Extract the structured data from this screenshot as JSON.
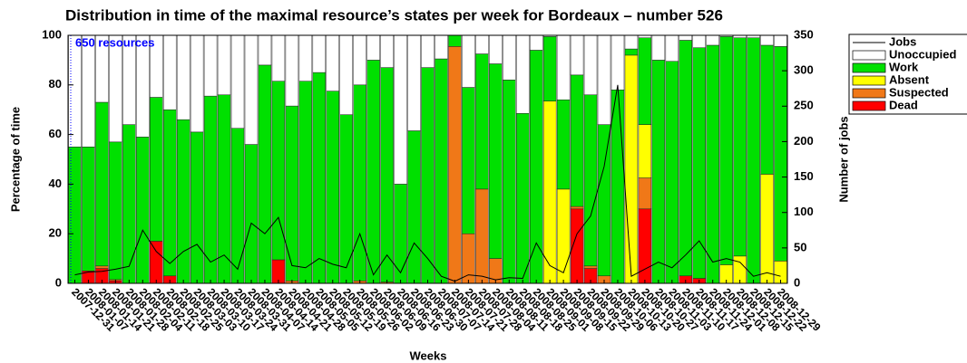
{
  "chart_data": {
    "type": "bar",
    "stacked": true,
    "title": "Distribution in time of the maximal resource’s states per week for Bordeaux – number 526",
    "xlabel": "Weeks",
    "ylabel": "Percentage of time",
    "y2label": "Number of jobs",
    "annotation": "650 resources",
    "legend": "outside-top-right",
    "categories": [
      "2007-12-31",
      "2008-01-07",
      "2008-01-14",
      "2008-01-21",
      "2008-01-28",
      "2008-02-04",
      "2008-02-11",
      "2008-02-18",
      "2008-02-25",
      "2008-03-03",
      "2008-03-10",
      "2008-03-17",
      "2008-03-24",
      "2008-03-31",
      "2008-04-07",
      "2008-04-14",
      "2008-04-21",
      "2008-04-28",
      "2008-05-05",
      "2008-05-12",
      "2008-05-19",
      "2008-05-26",
      "2008-06-02",
      "2008-06-09",
      "2008-06-16",
      "2008-06-23",
      "2008-06-30",
      "2008-07-07",
      "2008-07-14",
      "2008-07-21",
      "2008-07-28",
      "2008-08-04",
      "2008-08-11",
      "2008-08-18",
      "2008-08-25",
      "2008-09-01",
      "2008-09-08",
      "2008-09-15",
      "2008-09-22",
      "2008-09-29",
      "2008-10-06",
      "2008-10-13",
      "2008-10-20",
      "2008-10-27",
      "2008-11-03",
      "2008-11-10",
      "2008-11-17",
      "2008-11-24",
      "2008-12-01",
      "2008-12-08",
      "2008-12-15",
      "2008-12-22",
      "2008-12-29"
    ],
    "series": [
      {
        "name": "Jobs",
        "type": "line",
        "axis": "y2",
        "color": "#000000",
        "values": [
          12,
          16,
          17,
          20,
          24,
          75,
          45,
          28,
          45,
          55,
          30,
          40,
          20,
          85,
          70,
          93,
          25,
          22,
          35,
          27,
          22,
          70,
          12,
          40,
          15,
          57,
          35,
          10,
          3,
          12,
          10,
          5,
          8,
          7,
          57,
          25,
          15,
          70,
          95,
          165,
          280,
          10,
          20,
          30,
          22,
          40,
          60,
          30,
          35,
          30,
          10,
          15,
          10
        ]
      },
      {
        "name": "Unoccupied",
        "color": "#ffffff",
        "values": [
          45,
          45,
          27,
          43,
          36,
          41,
          25,
          30,
          34,
          39,
          24.5,
          24,
          37.5,
          44,
          12,
          18.5,
          28.5,
          18.5,
          15,
          22.5,
          32,
          20,
          10,
          13,
          60,
          38.5,
          13,
          9.5,
          0,
          21,
          7.5,
          11.5,
          18,
          31.5,
          6,
          0.5,
          26,
          16,
          24,
          36,
          22,
          5.5,
          1,
          10,
          10.5,
          2,
          5,
          4,
          0.5,
          1,
          1,
          4,
          4.5
        ]
      },
      {
        "name": "Work",
        "color": "#00e000",
        "values": [
          55,
          50,
          66,
          55.5,
          64,
          59,
          58,
          67,
          66,
          61,
          75.5,
          76,
          62.5,
          56,
          88,
          72,
          70.5,
          81.5,
          85,
          77.5,
          68,
          79,
          90,
          86.5,
          40,
          61.5,
          87,
          90.5,
          4.5,
          59,
          54.5,
          78.5,
          82,
          68.5,
          94,
          26,
          36,
          53,
          69,
          61,
          78,
          2.5,
          35,
          90,
          89.5,
          95,
          93,
          96,
          92,
          88,
          99,
          52,
          86.5
        ]
      },
      {
        "name": "Absent",
        "color": "#ffff00",
        "values": [
          0,
          0,
          0,
          0,
          0,
          0,
          0,
          0,
          0,
          0,
          0,
          0,
          0,
          0,
          0,
          0,
          0,
          0,
          0,
          0,
          0,
          0,
          0,
          0,
          0,
          0,
          0,
          0,
          0,
          0,
          0,
          0,
          0,
          0,
          0,
          73.5,
          38,
          0,
          0,
          0,
          0,
          92,
          21.5,
          0,
          0,
          0,
          0,
          0,
          7.5,
          11,
          0,
          44,
          9
        ]
      },
      {
        "name": "Suspected",
        "color": "#f07818",
        "values": [
          0,
          0,
          1,
          0.5,
          0,
          0,
          0,
          0,
          0,
          0,
          0,
          0,
          0,
          0,
          0,
          0,
          1,
          0,
          0,
          0,
          0,
          1,
          0,
          0.5,
          0,
          0,
          0,
          0,
          95.5,
          20,
          38,
          10,
          0,
          0,
          0,
          0,
          0,
          1,
          1,
          3,
          0,
          0,
          12.5,
          0,
          0,
          0,
          0,
          0,
          0,
          0,
          0,
          0,
          0
        ]
      },
      {
        "name": "Dead",
        "color": "#ff0000",
        "values": [
          0,
          5,
          6,
          1,
          0,
          0,
          17,
          3,
          0,
          0,
          0,
          0,
          0,
          0,
          0,
          9.5,
          0,
          0,
          0,
          0,
          0,
          0,
          0,
          0,
          0,
          0,
          0,
          0,
          0,
          0,
          0,
          0,
          0,
          0,
          0,
          0,
          0,
          30,
          6,
          0,
          0,
          0,
          30,
          0,
          0,
          3,
          2,
          0,
          0,
          0,
          0,
          0,
          0
        ]
      }
    ],
    "ylim": [
      0,
      100
    ],
    "yticks": [
      0,
      20,
      40,
      60,
      80,
      100
    ],
    "y2lim": [
      0,
      350
    ],
    "y2ticks": [
      0,
      50,
      100,
      150,
      200,
      250,
      300,
      350
    ]
  }
}
